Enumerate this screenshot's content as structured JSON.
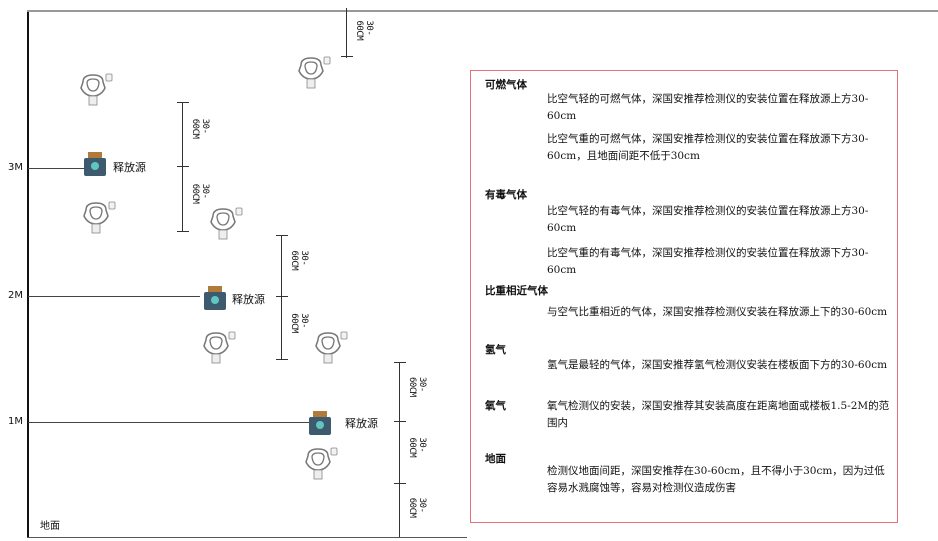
{
  "floors": [
    {
      "label": "3M"
    },
    {
      "label": "2M"
    },
    {
      "label": "1M"
    }
  ],
  "ground_label": "地面",
  "source_label": "释放源",
  "dimension_label": "30-60CM",
  "colors": {
    "border": "#e8707a",
    "source_body": "#3e5a6e",
    "source_cap": "#b07a3a",
    "source_face": "#5ec8c0",
    "detector": "#888888"
  },
  "info": {
    "sections": [
      {
        "heading": "可燃气体",
        "paragraphs": [
          "比空气轻的可燃气体，深国安推荐检测仪的安装位置在释放源上方30-60cm",
          "比空气重的可燃气体，深国安推荐检测仪的安装位置在释放源下方30-60cm，且地面间距不低于30cm"
        ]
      },
      {
        "heading": "有毒气体",
        "paragraphs": [
          "比空气轻的有毒气体，深国安推荐检测仪的安装位置在释放源上方30-60cm",
          "比空气重的有毒气体，深国安推荐检测仪的安装位置在释放源下方30-60cm"
        ]
      },
      {
        "heading": "比重相近气体",
        "paragraphs": [
          "与空气比重相近的气体，深国安推荐检测仪安装在释放源上下的30-60cm"
        ]
      },
      {
        "heading": "氢气",
        "paragraphs": [
          "氢气是最轻的气体，深国安推荐氢气检测仪安装在楼板面下方的30-60cm"
        ]
      },
      {
        "heading": "氧气",
        "paragraphs": [
          "氧气检测仪的安装，深国安推荐其安装高度在距离地面或楼板1.5-2M的范围内"
        ]
      },
      {
        "heading": "地面",
        "paragraphs": [
          "检测仪地面间距，深国安推荐在30-60cm，且不得小于30cm，因为过低容易水溅腐蚀等，容易对检测仪造成伤害"
        ]
      }
    ]
  }
}
